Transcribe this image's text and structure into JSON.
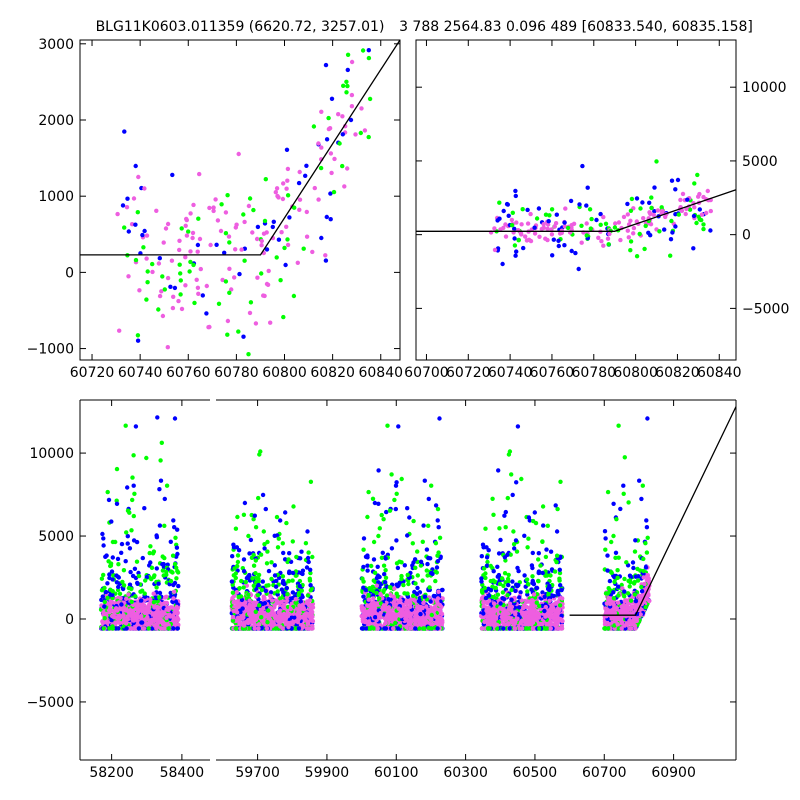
{
  "figure": {
    "title_left": "BLG11K0603.011359 (6620.72, 3257.01)",
    "title_right": "3 788 2564.83 0.096 489 [60833.540, 60835.158]"
  },
  "colors": {
    "blue": "#0000ff",
    "green": "#00ff00",
    "magenta": "#ee5ee0",
    "line": "#000000"
  },
  "chart_data": [
    {
      "type": "scatter",
      "panel": "top-left",
      "title": "BLG11K0603.011359 (6620.72, 3257.01)",
      "xlim": [
        60715,
        60848
      ],
      "ylim": [
        -1150,
        3050
      ],
      "xticks": [
        60720,
        60740,
        60760,
        60780,
        60800,
        60820,
        60840
      ],
      "yticks": [
        -1000,
        0,
        1000,
        2000,
        3000
      ],
      "yaxis": "left",
      "series": [
        {
          "name": "blue",
          "color": "#0000ff"
        },
        {
          "name": "green",
          "color": "#00ff00"
        },
        {
          "name": "magenta",
          "color": "#ee5ee0"
        }
      ],
      "model_line": {
        "x": [
          60715,
          60790,
          60848
        ],
        "y": [
          230,
          230,
          3050
        ]
      }
    },
    {
      "type": "scatter",
      "panel": "top-right",
      "title": "3 788 2564.83 0.096 489 [60833.540, 60835.158]",
      "xlim": [
        60695,
        60848
      ],
      "ylim": [
        -8500,
        13200
      ],
      "xticks": [
        60700,
        60720,
        60740,
        60760,
        60780,
        60800,
        60820,
        60840
      ],
      "yticks": [
        -5000,
        0,
        5000,
        10000
      ],
      "yaxis": "right",
      "series": [
        {
          "name": "blue",
          "color": "#0000ff"
        },
        {
          "name": "green",
          "color": "#00ff00"
        },
        {
          "name": "magenta",
          "color": "#ee5ee0"
        }
      ],
      "model_line": {
        "x": [
          60695,
          60790,
          60848
        ],
        "y": [
          230,
          230,
          3050
        ]
      }
    },
    {
      "type": "scatter",
      "panel": "bottom",
      "title": "",
      "ylim": [
        -8500,
        13200
      ],
      "yticks": [
        -5000,
        0,
        5000,
        10000
      ],
      "yaxis": "left",
      "segments": [
        {
          "xlim": [
            58110,
            58480
          ],
          "xticks": [
            58200,
            58400
          ],
          "seasons": [
            [
              58170,
              58390
            ]
          ]
        },
        {
          "xlim": [
            59580,
            61080
          ],
          "xticks": [
            59700,
            59900,
            60100,
            60300,
            60500,
            60700,
            60900
          ],
          "seasons": [
            [
              59625,
              59860
            ],
            [
              60000,
              60235
            ],
            [
              60345,
              60580
            ],
            [
              60700,
              60830
            ]
          ]
        }
      ],
      "series": [
        {
          "name": "blue",
          "color": "#0000ff"
        },
        {
          "name": "green",
          "color": "#00ff00"
        },
        {
          "name": "magenta",
          "color": "#ee5ee0"
        }
      ],
      "model_line": {
        "x": [
          60600,
          60790,
          61080
        ],
        "y": [
          230,
          230,
          12800
        ]
      }
    }
  ]
}
